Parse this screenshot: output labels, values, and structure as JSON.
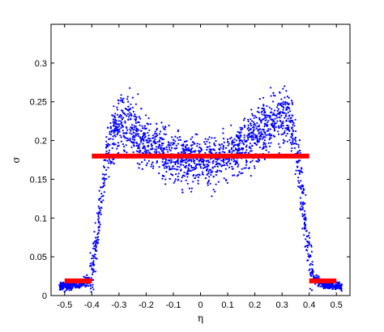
{
  "chart_data": {
    "type": "scatter",
    "title": "",
    "xlabel": "η",
    "ylabel": "σ",
    "xlim": [
      -0.55,
      0.55
    ],
    "ylim": [
      0,
      0.35
    ],
    "grid": false,
    "x_ticks": [
      -0.5,
      -0.4,
      -0.3,
      -0.2,
      -0.1,
      0,
      0.1,
      0.2,
      0.3,
      0.4,
      0.5
    ],
    "x_tick_labels": [
      "-0.5",
      "-0.4",
      "-0.3",
      "-0.2",
      "-0.1",
      "0",
      "0.1",
      "0.2",
      "0.3",
      "0.4",
      "0.5"
    ],
    "y_ticks": [
      0,
      0.05,
      0.1,
      0.15,
      0.2,
      0.25,
      0.3
    ],
    "y_tick_labels": [
      "0",
      "0.05",
      "0.1",
      "0.15",
      "0.2",
      "0.25",
      "0.3"
    ],
    "colors": {
      "points": "#0000ff",
      "lines": "#ff0000",
      "axes": "#000000"
    },
    "series": [
      {
        "kind": "scatter",
        "approx_point_count": 2600,
        "profile": [
          {
            "eta": -0.52,
            "sigma": 0.012
          },
          {
            "eta": -0.48,
            "sigma": 0.013
          },
          {
            "eta": -0.44,
            "sigma": 0.015
          },
          {
            "eta": -0.41,
            "sigma": 0.02
          },
          {
            "eta": -0.39,
            "sigma": 0.05
          },
          {
            "eta": -0.37,
            "sigma": 0.11
          },
          {
            "eta": -0.35,
            "sigma": 0.17
          },
          {
            "eta": -0.32,
            "sigma": 0.21
          },
          {
            "eta": -0.28,
            "sigma": 0.225
          },
          {
            "eta": -0.24,
            "sigma": 0.215
          },
          {
            "eta": -0.2,
            "sigma": 0.2
          },
          {
            "eta": -0.15,
            "sigma": 0.188
          },
          {
            "eta": -0.1,
            "sigma": 0.18
          },
          {
            "eta": -0.05,
            "sigma": 0.175
          },
          {
            "eta": 0,
            "sigma": 0.172
          },
          {
            "eta": 0.05,
            "sigma": 0.175
          },
          {
            "eta": 0.1,
            "sigma": 0.182
          },
          {
            "eta": 0.15,
            "sigma": 0.19
          },
          {
            "eta": 0.2,
            "sigma": 0.205
          },
          {
            "eta": 0.25,
            "sigma": 0.22
          },
          {
            "eta": 0.3,
            "sigma": 0.235
          },
          {
            "eta": 0.34,
            "sigma": 0.22
          },
          {
            "eta": 0.36,
            "sigma": 0.17
          },
          {
            "eta": 0.38,
            "sigma": 0.11
          },
          {
            "eta": 0.4,
            "sigma": 0.05
          },
          {
            "eta": 0.42,
            "sigma": 0.02
          },
          {
            "eta": 0.46,
            "sigma": 0.014
          },
          {
            "eta": 0.52,
            "sigma": 0.012
          }
        ]
      },
      {
        "kind": "step_line",
        "segments": [
          {
            "x": [
              -0.5,
              -0.4
            ],
            "y": [
              0.019,
              0.019
            ]
          },
          {
            "x": [
              -0.4,
              0.4
            ],
            "y": [
              0.18,
              0.18
            ]
          },
          {
            "x": [
              0.4,
              0.5
            ],
            "y": [
              0.019,
              0.019
            ]
          }
        ]
      }
    ]
  }
}
